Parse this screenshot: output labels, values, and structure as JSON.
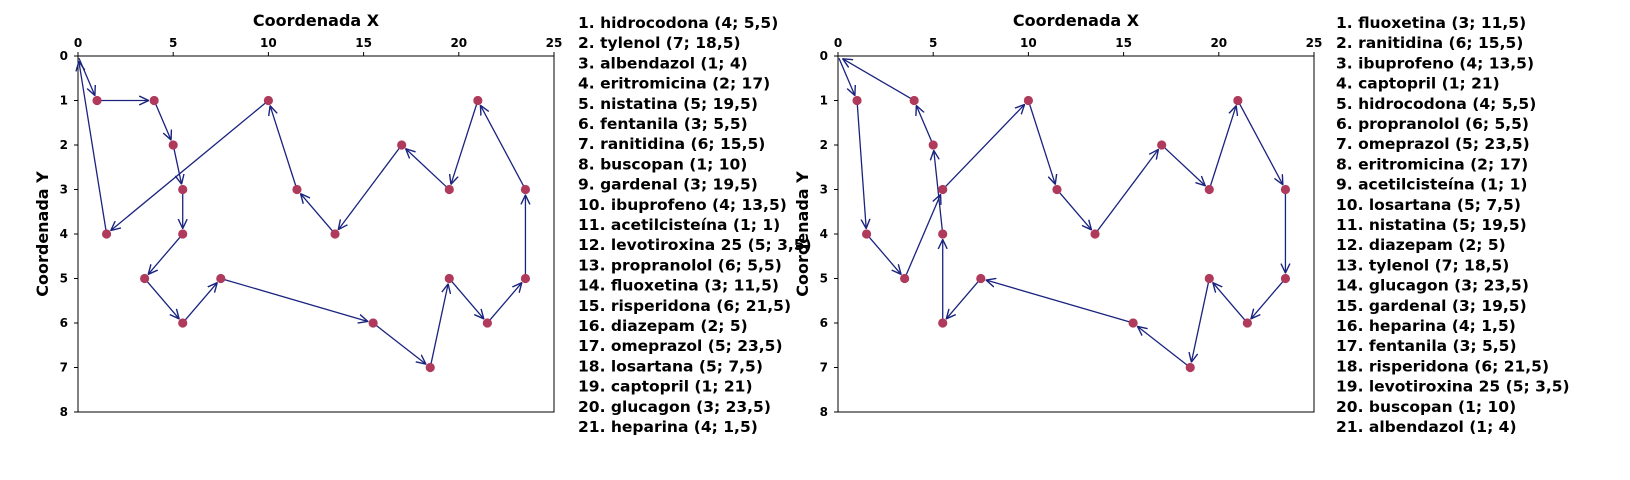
{
  "chart_data": [
    {
      "type": "line",
      "xlabel": "Coordenada X",
      "ylabel": "Coordenada Y",
      "xlim": [
        0,
        25
      ],
      "ylim": [
        8,
        0
      ],
      "x_ticks": [
        0,
        5,
        10,
        15,
        20,
        25
      ],
      "y_ticks": [
        0,
        1,
        2,
        3,
        4,
        5,
        6,
        7,
        8
      ],
      "x_axis_position": "top",
      "y_axis_inverted": true,
      "grid": false,
      "legend_position": "right",
      "marker_color": "#b03a5b",
      "line_color": "#1a237e",
      "route_points": [
        {
          "x": 0,
          "y": 0
        },
        {
          "x": 1,
          "y": 1
        },
        {
          "x": 4,
          "y": 1
        },
        {
          "x": 5,
          "y": 2
        },
        {
          "x": 5.5,
          "y": 3
        },
        {
          "x": 5.5,
          "y": 4
        },
        {
          "x": 3.5,
          "y": 5
        },
        {
          "x": 5.5,
          "y": 6
        },
        {
          "x": 7.5,
          "y": 5
        },
        {
          "x": 15.5,
          "y": 6
        },
        {
          "x": 18.5,
          "y": 7
        },
        {
          "x": 19.5,
          "y": 5
        },
        {
          "x": 21.5,
          "y": 6
        },
        {
          "x": 23.5,
          "y": 5
        },
        {
          "x": 23.5,
          "y": 3
        },
        {
          "x": 21,
          "y": 1
        },
        {
          "x": 19.5,
          "y": 3
        },
        {
          "x": 17,
          "y": 2
        },
        {
          "x": 13.5,
          "y": 4
        },
        {
          "x": 11.5,
          "y": 3
        },
        {
          "x": 10,
          "y": 1
        },
        {
          "x": 1.5,
          "y": 4
        },
        {
          "x": 0,
          "y": 0
        }
      ],
      "legend": [
        "1. hidrocodona (4; 5,5)",
        "2. tylenol (7; 18,5)",
        "3. albendazol (1; 4)",
        "4. eritromicina (2; 17)",
        "5. nistatina (5; 19,5)",
        "6. fentanila (3; 5,5)",
        "7. ranitidina (6; 15,5)",
        "8. buscopan (1; 10)",
        "9. gardenal (3; 19,5)",
        "10. ibuprofeno (4; 13,5)",
        "11. acetilcisteína (1; 1)",
        "12. levotiroxina 25 (5; 3,5)",
        "13. propranolol (6; 5,5)",
        "14. fluoxetina (3; 11,5)",
        "15. risperidona (6; 21,5)",
        "16. diazepam (2; 5)",
        "17. omeprazol (5; 23,5)",
        "18. losartana (5; 7,5)",
        "19. captopril (1; 21)",
        "20. glucagon (3; 23,5)",
        "21. heparina (4; 1,5)"
      ]
    },
    {
      "type": "line",
      "xlabel": "Coordenada X",
      "ylabel": "Coordenada Y",
      "xlim": [
        0,
        25
      ],
      "ylim": [
        8,
        0
      ],
      "x_ticks": [
        0,
        5,
        10,
        15,
        20,
        25
      ],
      "y_ticks": [
        0,
        1,
        2,
        3,
        4,
        5,
        6,
        7,
        8
      ],
      "x_axis_position": "top",
      "y_axis_inverted": true,
      "grid": false,
      "legend_position": "right",
      "marker_color": "#b03a5b",
      "line_color": "#1a237e",
      "route_points": [
        {
          "x": 0,
          "y": 0
        },
        {
          "x": 1,
          "y": 1
        },
        {
          "x": 1.5,
          "y": 4
        },
        {
          "x": 3.5,
          "y": 5
        },
        {
          "x": 5.5,
          "y": 3
        },
        {
          "x": 10,
          "y": 1
        },
        {
          "x": 11.5,
          "y": 3
        },
        {
          "x": 13.5,
          "y": 4
        },
        {
          "x": 17,
          "y": 2
        },
        {
          "x": 19.5,
          "y": 3
        },
        {
          "x": 21,
          "y": 1
        },
        {
          "x": 23.5,
          "y": 3
        },
        {
          "x": 23.5,
          "y": 5
        },
        {
          "x": 21.5,
          "y": 6
        },
        {
          "x": 19.5,
          "y": 5
        },
        {
          "x": 18.5,
          "y": 7
        },
        {
          "x": 15.5,
          "y": 6
        },
        {
          "x": 7.5,
          "y": 5
        },
        {
          "x": 5.5,
          "y": 6
        },
        {
          "x": 5.5,
          "y": 4
        },
        {
          "x": 5,
          "y": 2
        },
        {
          "x": 4,
          "y": 1
        },
        {
          "x": 0,
          "y": 0
        }
      ],
      "legend": [
        "1. fluoxetina (3; 11,5)",
        "2. ranitidina (6; 15,5)",
        "3. ibuprofeno (4; 13,5)",
        "4. captopril (1; 21)",
        "5. hidrocodona (4; 5,5)",
        "6. propranolol (6; 5,5)",
        "7. omeprazol (5; 23,5)",
        "8. eritromicina (2; 17)",
        "9. acetilcisteína (1; 1)",
        "10. losartana (5; 7,5)",
        "11. nistatina (5; 19,5)",
        "12. diazepam (2; 5)",
        "13. tylenol (7; 18,5)",
        "14. glucagon (3; 23,5)",
        "15. gardenal (3; 19,5)",
        "16. heparina (4; 1,5)",
        "17. fentanila (3; 5,5)",
        "18. risperidona (6; 21,5)",
        "19. levotiroxina 25 (5; 3,5)",
        "20. buscopan (1; 10)",
        "21. albendazol (1; 4)"
      ]
    }
  ]
}
